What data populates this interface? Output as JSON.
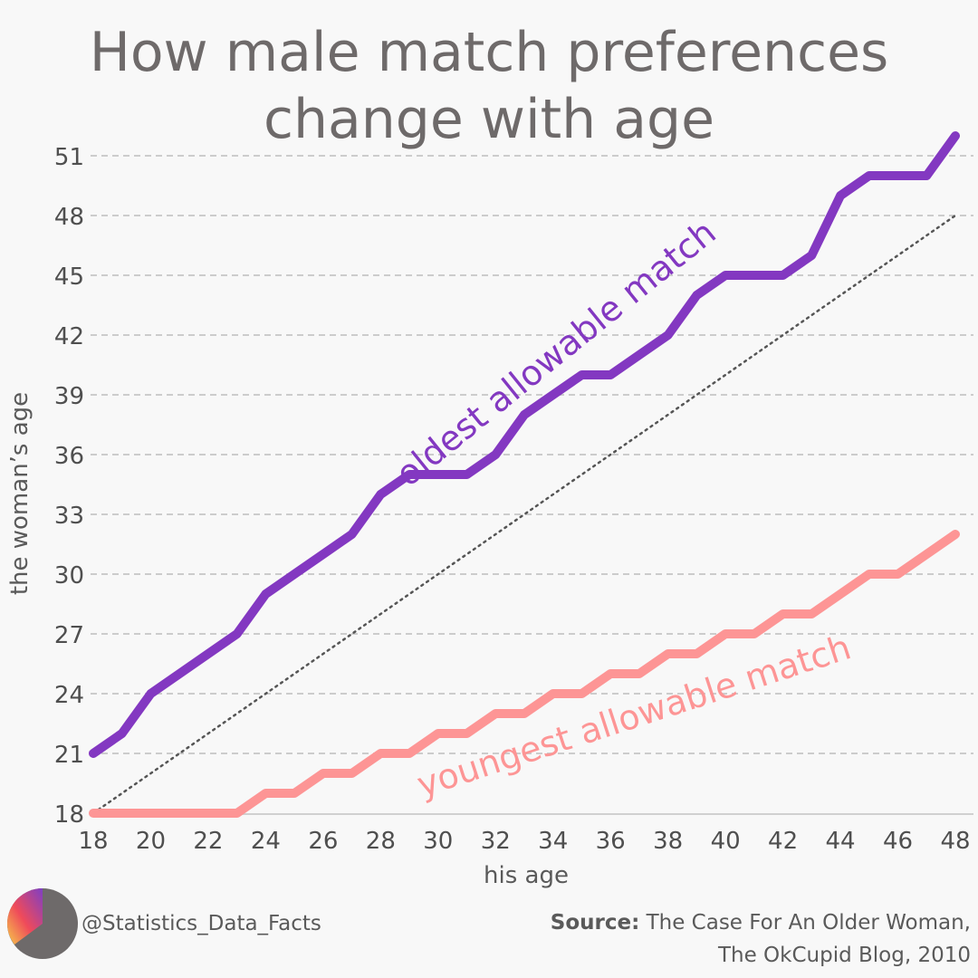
{
  "title_lines": [
    "How male match preferences",
    "change with age"
  ],
  "chart_data": {
    "type": "line",
    "xlabel": "his age",
    "ylabel": "the woman’s age",
    "xlim": [
      18,
      48
    ],
    "ylim": [
      18,
      52
    ],
    "xticks": [
      18,
      20,
      22,
      24,
      26,
      28,
      30,
      32,
      34,
      36,
      38,
      40,
      42,
      44,
      46,
      48
    ],
    "yticks": [
      18,
      21,
      24,
      27,
      30,
      33,
      36,
      39,
      42,
      45,
      48,
      51
    ],
    "grid": "horizontal dashed",
    "x": [
      18,
      19,
      20,
      21,
      22,
      23,
      24,
      25,
      26,
      27,
      28,
      29,
      30,
      31,
      32,
      33,
      34,
      35,
      36,
      37,
      38,
      39,
      40,
      41,
      42,
      43,
      44,
      45,
      46,
      47,
      48
    ],
    "series": [
      {
        "name": "oldest allowable match",
        "color": "#8338c1",
        "values": [
          21,
          22,
          24,
          25,
          26,
          27,
          29,
          30,
          31,
          32,
          34,
          35,
          35,
          35,
          36,
          38,
          39,
          40,
          40,
          41,
          42,
          44,
          45,
          45,
          45,
          46,
          49,
          50,
          50,
          50,
          52
        ]
      },
      {
        "name": "youngest allowable match",
        "color": "#fd9595",
        "values": [
          18,
          18,
          18,
          18,
          18,
          18,
          19,
          19,
          20,
          20,
          21,
          21,
          22,
          22,
          23,
          23,
          24,
          24,
          25,
          25,
          26,
          26,
          27,
          27,
          28,
          28,
          29,
          30,
          30,
          31,
          32
        ]
      }
    ],
    "reference_line": {
      "style": "dotted",
      "color": "#555555",
      "from": [
        18,
        18
      ],
      "to": [
        48,
        48
      ]
    }
  },
  "footer": {
    "handle": "@Statistics_Data_Facts",
    "source_label": "Source:",
    "source_text_1": " The Case For An Older Woman,",
    "source_text_2": "The OkCupid Blog, 2010"
  },
  "colors": {
    "logo_gray": "#6e6a6a",
    "logo_gradient": [
      "#f6c94a",
      "#ef4a5a",
      "#7e3fc4"
    ]
  }
}
